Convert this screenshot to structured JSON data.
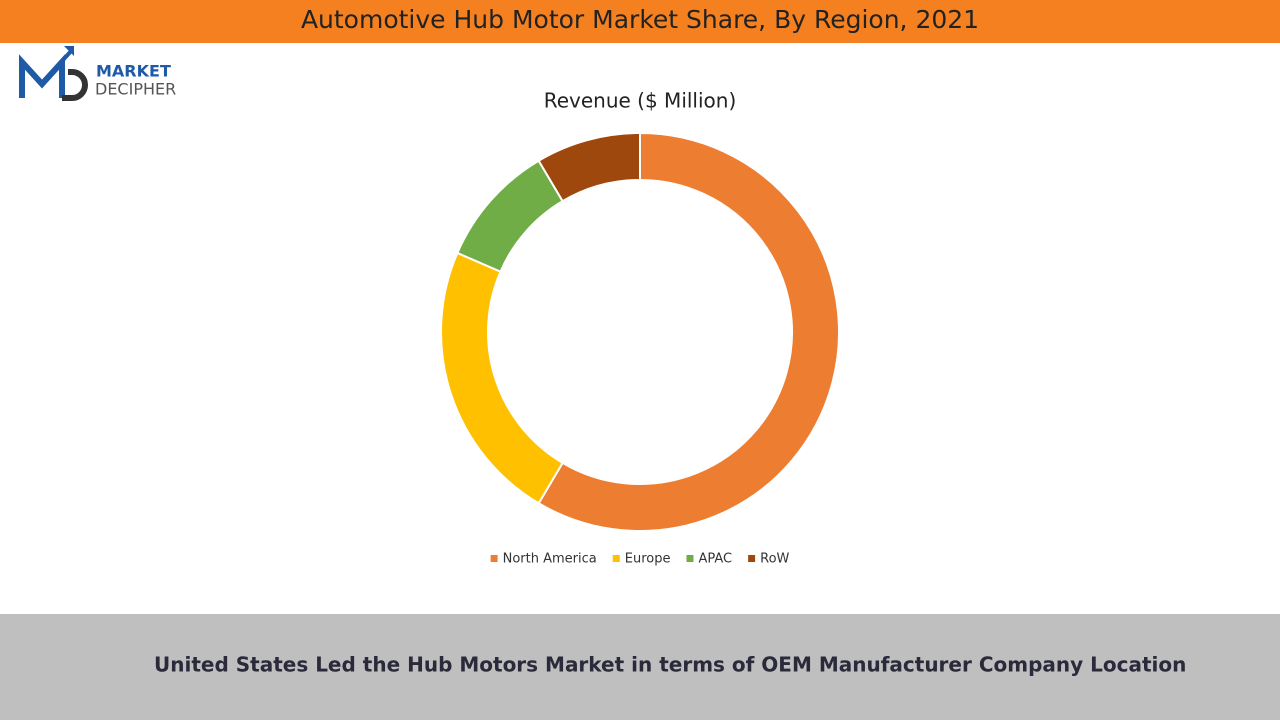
{
  "header": {
    "title": "Automotive Hub Motor Market Share, By Region, 2021"
  },
  "logo": {
    "line1": "MARKET",
    "line2": "DECIPHER"
  },
  "chart_data": {
    "type": "donut",
    "title": "Revenue ($ Million)",
    "categories": [
      "North America",
      "Europe",
      "APAC",
      "RoW"
    ],
    "values": [
      58.5,
      23,
      10,
      8.5
    ],
    "colors": [
      "#ed7d31",
      "#ffc000",
      "#70ad47",
      "#9e480e"
    ],
    "legend": "bottom"
  },
  "footer": {
    "text": "United States Led the Hub Motors Market in terms of OEM Manufacturer Company Location"
  }
}
